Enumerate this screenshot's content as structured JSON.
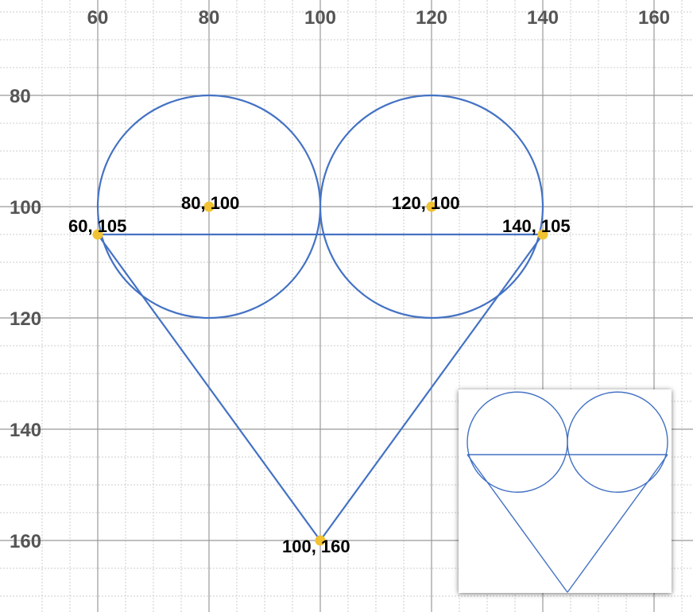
{
  "colors": {
    "shape": "#4472c4",
    "point": "#f1c232",
    "grid_major": "#999999",
    "grid_minor": "#cccccc",
    "tick_text": "#555555"
  },
  "axes": {
    "x_ticks": [
      60,
      80,
      100,
      120,
      140,
      160
    ],
    "y_ticks": [
      80,
      100,
      120,
      140,
      160
    ],
    "x_range": [
      51.5,
      170
    ],
    "y_range": [
      63,
      176
    ],
    "y_direction": "down",
    "grid": true
  },
  "chart_data": {
    "type": "diagram",
    "circles": [
      {
        "cx": 80,
        "cy": 100,
        "r": 20
      },
      {
        "cx": 120,
        "cy": 100,
        "r": 20
      }
    ],
    "segments": [
      {
        "from": [
          60,
          105
        ],
        "to": [
          140,
          105
        ]
      },
      {
        "from": [
          60,
          105
        ],
        "to": [
          100,
          160
        ]
      },
      {
        "from": [
          140,
          105
        ],
        "to": [
          100,
          160
        ]
      }
    ],
    "points": [
      {
        "x": 80,
        "y": 100,
        "label": "80, 100"
      },
      {
        "x": 120,
        "y": 100,
        "label": "120, 100"
      },
      {
        "x": 60,
        "y": 105,
        "label": "60, 105"
      },
      {
        "x": 140,
        "y": 105,
        "label": "140, 105"
      },
      {
        "x": 100,
        "y": 160,
        "label": "100, 160"
      }
    ]
  },
  "inset": {
    "description_hidden": true,
    "circles": [
      {
        "cx": 80,
        "cy": 100,
        "r": 20
      },
      {
        "cx": 120,
        "cy": 100,
        "r": 20
      }
    ],
    "segments": [
      {
        "from": [
          60,
          105
        ],
        "to": [
          140,
          105
        ]
      },
      {
        "from": [
          60,
          105
        ],
        "to": [
          100,
          160
        ]
      },
      {
        "from": [
          140,
          105
        ],
        "to": [
          100,
          160
        ]
      }
    ]
  }
}
